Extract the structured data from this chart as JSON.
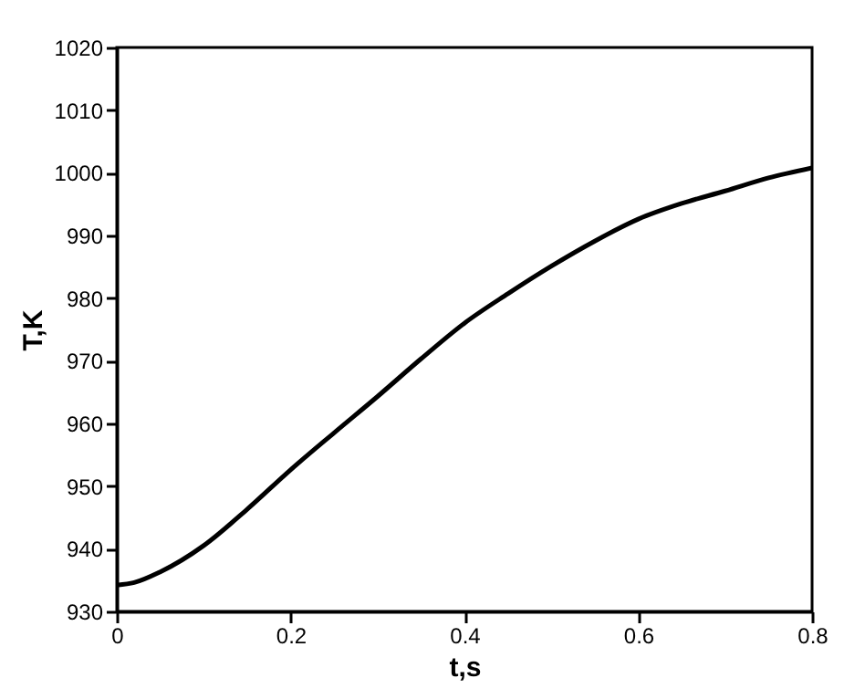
{
  "chart_data": {
    "type": "line",
    "xlabel": "t,s",
    "ylabel": "T,K",
    "x": [
      0,
      0.02,
      0.05,
      0.1,
      0.15,
      0.2,
      0.25,
      0.3,
      0.35,
      0.4,
      0.45,
      0.5,
      0.55,
      0.6,
      0.65,
      0.7,
      0.75,
      0.8
    ],
    "series": [
      {
        "color": "#000000",
        "values": [
          934.2,
          934.6,
          936.3,
          940.5,
          946.3,
          952.6,
          958.5,
          964.3,
          970.3,
          976,
          980.7,
          985.1,
          989.1,
          992.6,
          995.1,
          997.1,
          999.2,
          1000.8
        ]
      }
    ],
    "xlim": [
      0,
      0.8
    ],
    "xticks": [
      0,
      0.2,
      0.4,
      0.6,
      0.8
    ],
    "ylim": [
      930,
      1020
    ],
    "yticks": [
      930,
      940,
      950,
      960,
      970,
      980,
      990,
      1000,
      1010,
      1020
    ],
    "grid": false,
    "marker": "none",
    "line_style": "solid"
  }
}
